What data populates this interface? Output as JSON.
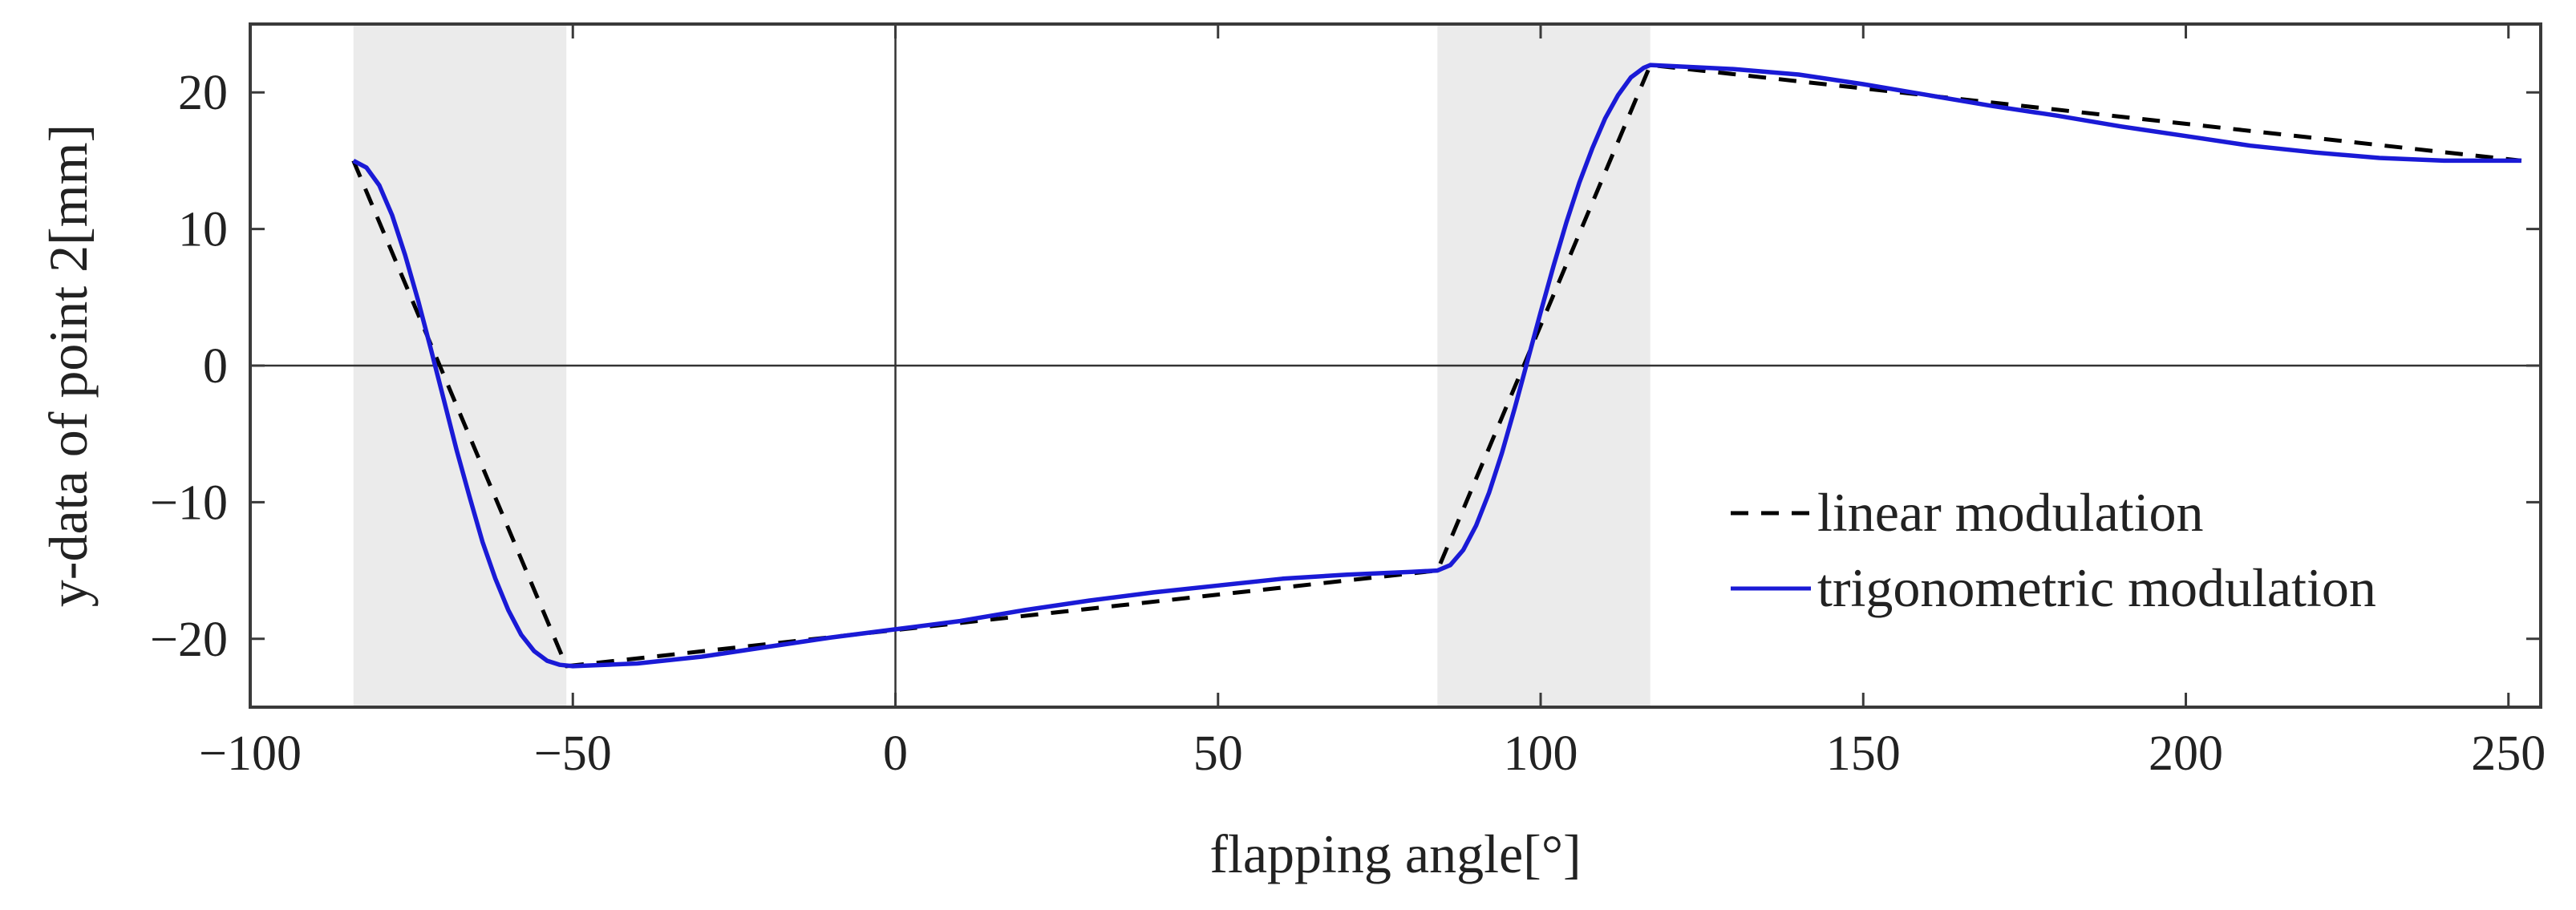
{
  "chart_data": {
    "type": "line",
    "title": "",
    "xlabel": "flapping angle[°]",
    "ylabel": "y-data of point 2[mm]",
    "xlim": [
      -100,
      255
    ],
    "ylim": [
      -25,
      25
    ],
    "xticks": [
      -100,
      -50,
      0,
      50,
      100,
      150,
      200,
      250
    ],
    "xtick_labels": [
      "−100",
      "−50",
      "0",
      "50",
      "100",
      "150",
      "200",
      "250"
    ],
    "yticks": [
      -20,
      -10,
      0,
      10,
      20
    ],
    "ytick_labels": [
      "−20",
      "−10",
      "0",
      "10",
      "20"
    ],
    "grid": false,
    "zero_lines": true,
    "shaded_regions": [
      {
        "x_start": -84,
        "x_end": -51
      },
      {
        "x_start": 84,
        "x_end": 117
      }
    ],
    "legend_position": "bottom-right",
    "series": [
      {
        "name": "linear modulation",
        "style": "dashed",
        "color": "#000000",
        "x": [
          -84,
          -51,
          84,
          117,
          252
        ],
        "y": [
          15,
          -22,
          -15,
          22,
          15
        ]
      },
      {
        "name": "trigonometric modulation",
        "style": "solid",
        "color": "#1a1ad6",
        "x": [
          -84,
          -82,
          -80,
          -78,
          -76,
          -74,
          -72,
          -70,
          -68,
          -66,
          -64,
          -62,
          -60,
          -58,
          -56,
          -54,
          -52,
          -50,
          -40,
          -30,
          -20,
          -10,
          0,
          10,
          20,
          30,
          40,
          50,
          60,
          70,
          80,
          84,
          86,
          88,
          90,
          92,
          94,
          96,
          98,
          100,
          102,
          104,
          106,
          108,
          110,
          112,
          114,
          116,
          117,
          130,
          140,
          150,
          160,
          170,
          180,
          190,
          200,
          210,
          220,
          230,
          240,
          250,
          252
        ],
        "y": [
          15,
          14.5,
          13.2,
          11,
          8.1,
          4.8,
          1.2,
          -2.5,
          -6.2,
          -9.6,
          -12.9,
          -15.6,
          -17.9,
          -19.7,
          -20.9,
          -21.6,
          -21.9,
          -22,
          -21.8,
          -21.3,
          -20.6,
          -19.9,
          -19.3,
          -18.7,
          -17.9,
          -17.2,
          -16.6,
          -16.1,
          -15.6,
          -15.3,
          -15.1,
          -15,
          -14.6,
          -13.5,
          -11.7,
          -9.3,
          -6.4,
          -3.1,
          0.4,
          3.9,
          7.3,
          10.5,
          13.4,
          15.9,
          18.1,
          19.8,
          21.1,
          21.8,
          22,
          21.7,
          21.3,
          20.6,
          19.8,
          19,
          18.3,
          17.5,
          16.8,
          16.1,
          15.6,
          15.2,
          15,
          15,
          15
        ]
      }
    ]
  }
}
